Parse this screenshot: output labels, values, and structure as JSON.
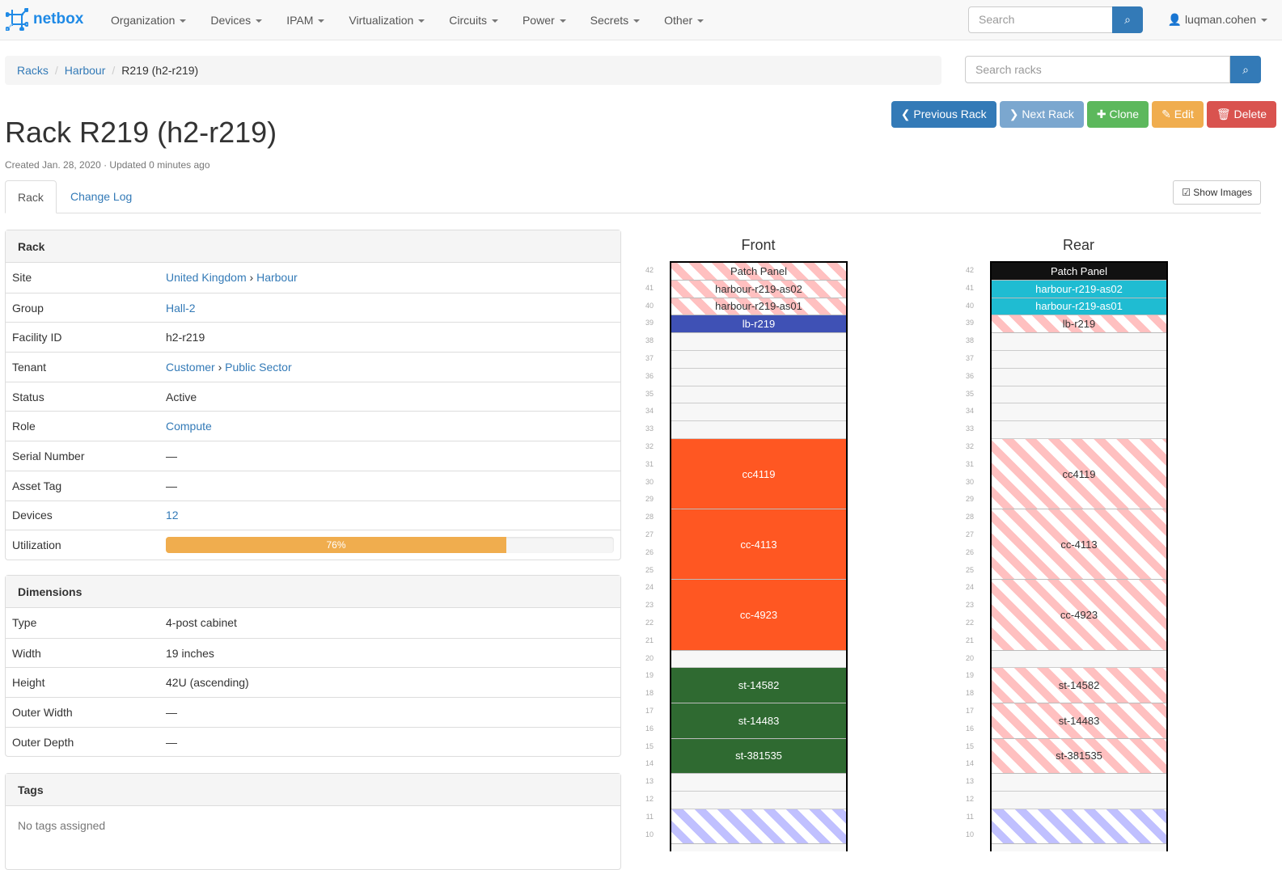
{
  "nav": {
    "brand": "netbox",
    "menus": [
      "Organization",
      "Devices",
      "IPAM",
      "Virtualization",
      "Circuits",
      "Power",
      "Secrets",
      "Other"
    ],
    "search_placeholder": "Search",
    "user": "luqman.cohen"
  },
  "breadcrumb": {
    "items": [
      "Racks",
      "Harbour"
    ],
    "current": "R219 (h2-r219)"
  },
  "rack_search_placeholder": "Search racks",
  "actions": [
    {
      "label": "Previous Rack",
      "icon": "chevron-left-icon",
      "glyph": "❮",
      "color": "#337ab7"
    },
    {
      "label": "Next Rack",
      "icon": "chevron-right-icon",
      "glyph": "❯",
      "color": "#7ba7cf"
    },
    {
      "label": "Clone",
      "icon": "plus-icon",
      "glyph": "✚",
      "color": "#5cb85c"
    },
    {
      "label": "Edit",
      "icon": "pencil-icon",
      "glyph": "✎",
      "color": "#f0ad4e"
    },
    {
      "label": "Delete",
      "icon": "trash-icon",
      "glyph": "🗑",
      "color": "#d9534f"
    }
  ],
  "title": "Rack R219 (h2-r219)",
  "meta": "Created Jan. 28, 2020 · Updated 0 minutes ago",
  "tabs": [
    "Rack",
    "Change Log"
  ],
  "show_images": "Show Images",
  "rack_panel": {
    "title": "Rack",
    "rows": [
      {
        "k": "Site",
        "v": [
          "United Kingdom",
          "Harbour"
        ],
        "link": true
      },
      {
        "k": "Group",
        "v": [
          "Hall-2"
        ],
        "link": true
      },
      {
        "k": "Facility ID",
        "v": [
          "h2-r219"
        ]
      },
      {
        "k": "Tenant",
        "v": [
          "Customer",
          "Public Sector"
        ],
        "link": true
      },
      {
        "k": "Status",
        "v": [
          "Active"
        ]
      },
      {
        "k": "Role",
        "v": [
          "Compute"
        ],
        "link": true
      },
      {
        "k": "Serial Number",
        "v": [
          "—"
        ]
      },
      {
        "k": "Asset Tag",
        "v": [
          "—"
        ]
      },
      {
        "k": "Devices",
        "v": [
          "12"
        ],
        "link": true
      },
      {
        "k": "Utilization",
        "v": [
          "76%"
        ],
        "utilization": 76
      }
    ]
  },
  "dimensions_panel": {
    "title": "Dimensions",
    "rows": [
      {
        "k": "Type",
        "v": [
          "4-post cabinet"
        ]
      },
      {
        "k": "Width",
        "v": [
          "19 inches"
        ]
      },
      {
        "k": "Height",
        "v": [
          "42U (ascending)"
        ]
      },
      {
        "k": "Outer Width",
        "v": [
          "—"
        ]
      },
      {
        "k": "Outer Depth",
        "v": [
          "—"
        ]
      }
    ]
  },
  "tags_panel": {
    "title": "Tags",
    "empty": "No tags assigned"
  },
  "elevations": {
    "front_title": "Front",
    "rear_title": "Rear",
    "units_top": 42,
    "units_bottom": 10,
    "devices": [
      {
        "name": "Patch Panel",
        "unit": 42,
        "height": 1,
        "front": "stripe-red",
        "rear": "#111111"
      },
      {
        "name": "harbour-r219-as02",
        "unit": 41,
        "height": 1,
        "front": "stripe-red",
        "rear": "#1fbcd2"
      },
      {
        "name": "harbour-r219-as01",
        "unit": 40,
        "height": 1,
        "front": "stripe-red",
        "rear": "#1fbcd2"
      },
      {
        "name": "lb-r219",
        "unit": 39,
        "height": 1,
        "front": "#3f51b5",
        "rear": "stripe-red"
      },
      {
        "name": "cc4119",
        "unit": 29,
        "height": 4,
        "front": "#ff5722",
        "rear": "stripe-red"
      },
      {
        "name": "cc-4113",
        "unit": 25,
        "height": 4,
        "front": "#ff5722",
        "rear": "stripe-red"
      },
      {
        "name": "cc-4923",
        "unit": 21,
        "height": 4,
        "front": "#ff5722",
        "rear": "stripe-red"
      },
      {
        "name": "st-14582",
        "unit": 18,
        "height": 2,
        "front": "#2f6a31",
        "rear": "stripe-red"
      },
      {
        "name": "st-14483",
        "unit": 16,
        "height": 2,
        "front": "#2f6a31",
        "rear": "stripe-red"
      },
      {
        "name": "st-381535",
        "unit": 14,
        "height": 2,
        "front": "#2f6a31",
        "rear": "stripe-red"
      },
      {
        "name": "",
        "unit": 10,
        "height": 2,
        "front": "stripe-blue",
        "rear": "stripe-blue"
      }
    ]
  }
}
